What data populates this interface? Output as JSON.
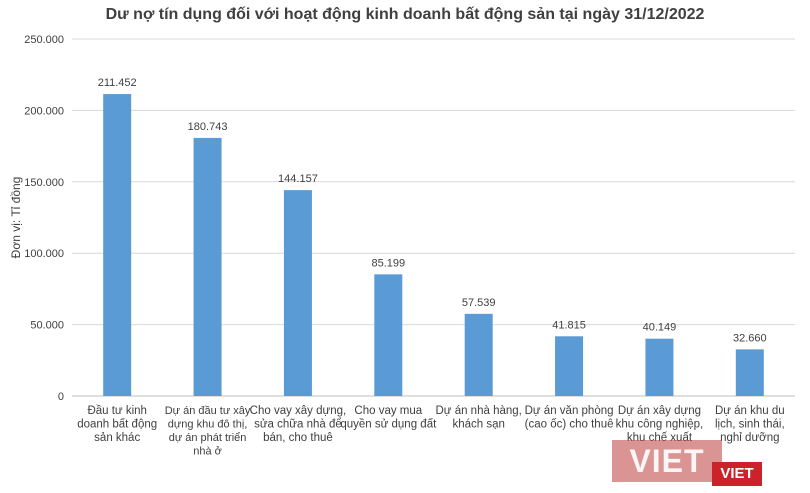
{
  "chart_data": {
    "type": "bar",
    "title": "Dư nợ tín dụng đối với hoạt động kinh doanh bất động sản tại ngày 31/12/2022",
    "ylabel": "Đơn vị: Tỉ đồng",
    "xlabel": "",
    "ylim": [
      0,
      250000
    ],
    "yticks": [
      {
        "value": 0,
        "label": "0"
      },
      {
        "value": 50000,
        "label": "50.000"
      },
      {
        "value": 100000,
        "label": "100.000"
      },
      {
        "value": 150000,
        "label": "150.000"
      },
      {
        "value": 200000,
        "label": "200.000"
      },
      {
        "value": 250000,
        "label": "250.000"
      }
    ],
    "grid": true,
    "bar_color": "#5b9bd5",
    "categories": [
      [
        "Đầu tư kinh",
        "doanh bất động",
        "sản khác"
      ],
      [
        "Dự án đầu tư xây",
        "dựng khu đô thị,",
        "dự án phát triển",
        "nhà ở"
      ],
      [
        "Cho vay xây dựng,",
        "sửa chữa nhà để",
        "bán, cho thuê"
      ],
      [
        "Cho vay mua",
        "quyền sử dụng đất"
      ],
      [
        "Dự án nhà hàng,",
        "khách sạn"
      ],
      [
        "Dự án văn phòng",
        "(cao ốc) cho thuê"
      ],
      [
        "Dự án xây dựng",
        "khu công nghiệp,",
        "khu chế xuất"
      ],
      [
        "Dự án khu du",
        "lịch, sinh thái,",
        "nghỉ dưỡng"
      ]
    ],
    "values": [
      211452,
      180743,
      144157,
      85199,
      57539,
      41815,
      40149,
      32660
    ],
    "value_labels": [
      "211.452",
      "180.743",
      "144.157",
      "85.199",
      "57.539",
      "41.815",
      "40.149",
      "32.660"
    ]
  },
  "watermark": {
    "main": "VIET",
    "small": "VIET"
  }
}
